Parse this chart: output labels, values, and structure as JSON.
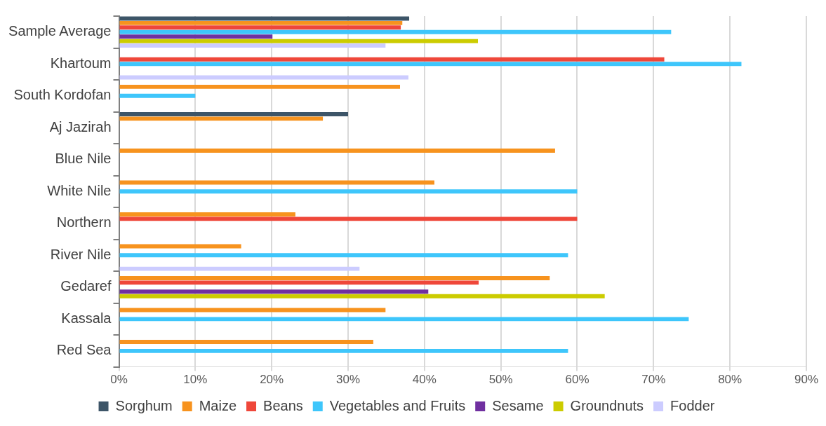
{
  "chart_data": {
    "type": "bar",
    "orientation": "horizontal",
    "categories": [
      "Sample Average",
      "Khartoum",
      "South Kordofan",
      "Aj Jazirah",
      "Blue Nile",
      "White Nile",
      "Northern",
      "River Nile",
      "Gedaref",
      "Kassala",
      "Red Sea"
    ],
    "series": [
      {
        "name": "Sorghum",
        "color": "#3d5568",
        "values": [
          38.0,
          null,
          null,
          30.0,
          null,
          null,
          null,
          null,
          null,
          null,
          null
        ]
      },
      {
        "name": "Maize",
        "color": "#f7931e",
        "values": [
          37.1,
          null,
          36.8,
          26.7,
          57.1,
          41.3,
          23.1,
          16.0,
          56.4,
          34.9,
          33.3
        ]
      },
      {
        "name": "Beans",
        "color": "#ef473a",
        "values": [
          36.9,
          71.4,
          null,
          null,
          null,
          null,
          60.0,
          null,
          47.1,
          null,
          null
        ]
      },
      {
        "name": "Vegetables and Fruits",
        "color": "#3ec6fb",
        "values": [
          72.3,
          81.5,
          10.0,
          null,
          null,
          60.0,
          null,
          58.8,
          null,
          74.6,
          58.8
        ]
      },
      {
        "name": "Sesame",
        "color": "#7030a0",
        "values": [
          20.1,
          null,
          null,
          null,
          null,
          null,
          null,
          null,
          40.5,
          null,
          null
        ]
      },
      {
        "name": "Groundnuts",
        "color": "#cccc00",
        "values": [
          47.0,
          null,
          null,
          null,
          null,
          null,
          null,
          null,
          63.6,
          null,
          null
        ]
      },
      {
        "name": "Fodder",
        "color": "#ccccff",
        "values": [
          34.9,
          37.9,
          null,
          null,
          null,
          null,
          null,
          31.5,
          null,
          null,
          null
        ]
      }
    ],
    "xlim": [
      0,
      90
    ],
    "xticks": [
      {
        "value": 0,
        "label": "0%"
      },
      {
        "value": 10,
        "label": "10%"
      },
      {
        "value": 20,
        "label": "20%"
      },
      {
        "value": 30,
        "label": "30%"
      },
      {
        "value": 40,
        "label": "40%"
      },
      {
        "value": 50,
        "label": "50%"
      },
      {
        "value": 60,
        "label": "60%"
      },
      {
        "value": 70,
        "label": "70%"
      },
      {
        "value": 80,
        "label": "80%"
      },
      {
        "value": 90,
        "label": "90%"
      }
    ],
    "grid": "x",
    "legend": "bottom"
  }
}
